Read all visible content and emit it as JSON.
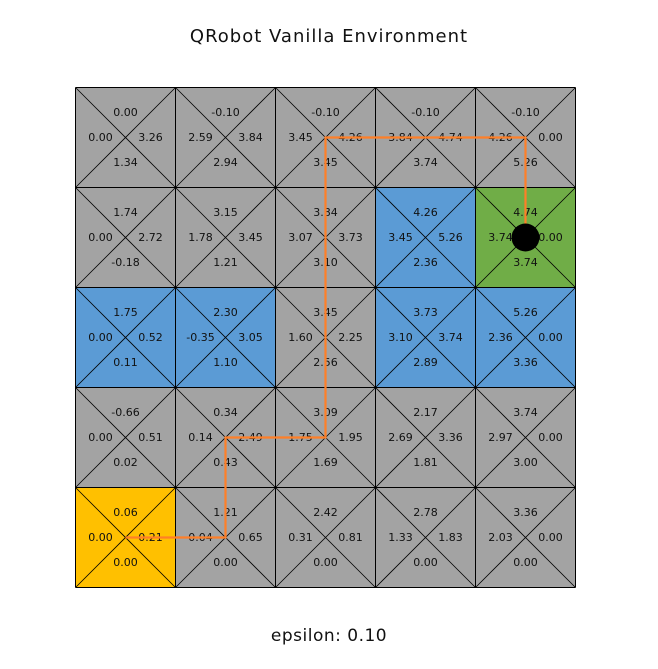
{
  "title": "QRobot Vanilla Environment",
  "footer": "epsilon: 0.10",
  "colors": {
    "default": "#a3a3a3",
    "wall": "#5b9bd5",
    "start": "#ffc000",
    "goal": "#70ad47",
    "path": "#ff7f27",
    "robot": "#000000",
    "line": "#000000"
  },
  "grid": {
    "rows": 5,
    "cols": 5,
    "cells": [
      [
        {
          "type": "default",
          "q": {
            "up": "0.00",
            "left": "0.00",
            "right": "3.26",
            "down": "1.34"
          }
        },
        {
          "type": "default",
          "q": {
            "up": "-0.10",
            "left": "2.59",
            "right": "3.84",
            "down": "2.94"
          }
        },
        {
          "type": "default",
          "q": {
            "up": "-0.10",
            "left": "3.45",
            "right": "4.26",
            "down": "3.45"
          }
        },
        {
          "type": "default",
          "q": {
            "up": "-0.10",
            "left": "3.84",
            "right": "4.74",
            "down": "3.74"
          }
        },
        {
          "type": "default",
          "q": {
            "up": "-0.10",
            "left": "4.26",
            "right": "0.00",
            "down": "5.26"
          }
        }
      ],
      [
        {
          "type": "default",
          "q": {
            "up": "1.74",
            "left": "0.00",
            "right": "2.72",
            "down": "-0.18"
          }
        },
        {
          "type": "default",
          "q": {
            "up": "3.15",
            "left": "1.78",
            "right": "3.45",
            "down": "1.21"
          }
        },
        {
          "type": "default",
          "q": {
            "up": "3.84",
            "left": "3.07",
            "right": "3.73",
            "down": "3.10"
          }
        },
        {
          "type": "wall",
          "q": {
            "up": "4.26",
            "left": "3.45",
            "right": "5.26",
            "down": "2.36"
          }
        },
        {
          "type": "goal",
          "q": {
            "up": "4.74",
            "left": "3.74",
            "right": "0.00",
            "down": "3.74"
          }
        }
      ],
      [
        {
          "type": "wall",
          "q": {
            "up": "1.75",
            "left": "0.00",
            "right": "0.52",
            "down": "0.11"
          }
        },
        {
          "type": "wall",
          "q": {
            "up": "2.30",
            "left": "-0.35",
            "right": "3.05",
            "down": "1.10"
          }
        },
        {
          "type": "default",
          "q": {
            "up": "3.45",
            "left": "1.60",
            "right": "2.25",
            "down": "2.56"
          }
        },
        {
          "type": "wall",
          "q": {
            "up": "3.73",
            "left": "3.10",
            "right": "3.74",
            "down": "2.89"
          }
        },
        {
          "type": "wall",
          "q": {
            "up": "5.26",
            "left": "2.36",
            "right": "0.00",
            "down": "3.36"
          }
        }
      ],
      [
        {
          "type": "default",
          "q": {
            "up": "-0.66",
            "left": "0.00",
            "right": "0.51",
            "down": "0.02"
          }
        },
        {
          "type": "default",
          "q": {
            "up": "0.34",
            "left": "0.14",
            "right": "2.49",
            "down": "0.43"
          }
        },
        {
          "type": "default",
          "q": {
            "up": "3.09",
            "left": "1.75",
            "right": "1.95",
            "down": "1.69"
          }
        },
        {
          "type": "default",
          "q": {
            "up": "2.17",
            "left": "2.69",
            "right": "3.36",
            "down": "1.81"
          }
        },
        {
          "type": "default",
          "q": {
            "up": "3.74",
            "left": "2.97",
            "right": "0.00",
            "down": "3.00"
          }
        }
      ],
      [
        {
          "type": "start",
          "q": {
            "up": "0.06",
            "left": "0.00",
            "right": "0.21",
            "down": "0.00"
          }
        },
        {
          "type": "default",
          "q": {
            "up": "1.21",
            "left": "0.04",
            "right": "0.65",
            "down": "0.00"
          }
        },
        {
          "type": "default",
          "q": {
            "up": "2.42",
            "left": "0.31",
            "right": "0.81",
            "down": "0.00"
          }
        },
        {
          "type": "default",
          "q": {
            "up": "2.78",
            "left": "1.33",
            "right": "1.83",
            "down": "0.00"
          }
        },
        {
          "type": "default",
          "q": {
            "up": "3.36",
            "left": "2.03",
            "right": "0.00",
            "down": "0.00"
          }
        }
      ]
    ]
  },
  "path": [
    [
      4,
      0
    ],
    [
      4,
      1
    ],
    [
      3,
      1
    ],
    [
      3,
      2
    ],
    [
      2,
      2
    ],
    [
      1,
      2
    ],
    [
      0,
      2
    ],
    [
      0,
      3
    ],
    [
      0,
      4
    ],
    [
      1,
      4
    ]
  ],
  "robot": {
    "row": 1,
    "col": 4
  }
}
